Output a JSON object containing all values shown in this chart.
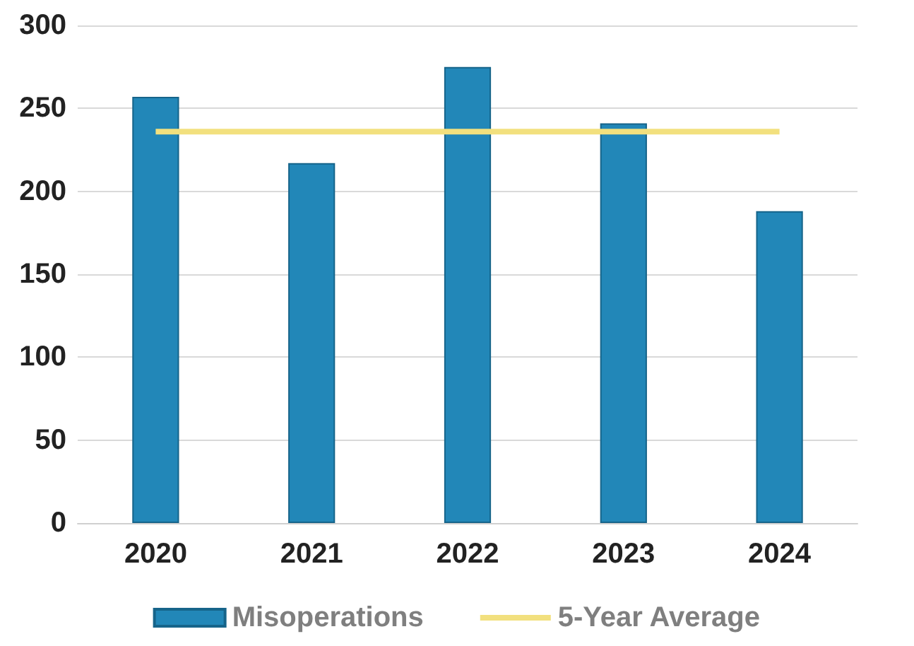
{
  "chart_data": {
    "type": "bar",
    "categories": [
      "2020",
      "2021",
      "2022",
      "2023",
      "2024"
    ],
    "series": [
      {
        "name": "Misoperations",
        "color": "#2287b8",
        "values": [
          257,
          217,
          275,
          241,
          188
        ]
      },
      {
        "name": "5-Year Average",
        "type": "line",
        "color": "#f2e07e",
        "values": [
          236,
          236,
          236,
          236,
          236
        ]
      }
    ],
    "ylim": [
      0,
      300
    ],
    "yticks": [
      0,
      50,
      100,
      150,
      200,
      250,
      300
    ],
    "grid": "y",
    "legend": "bottom",
    "marker": "none"
  }
}
